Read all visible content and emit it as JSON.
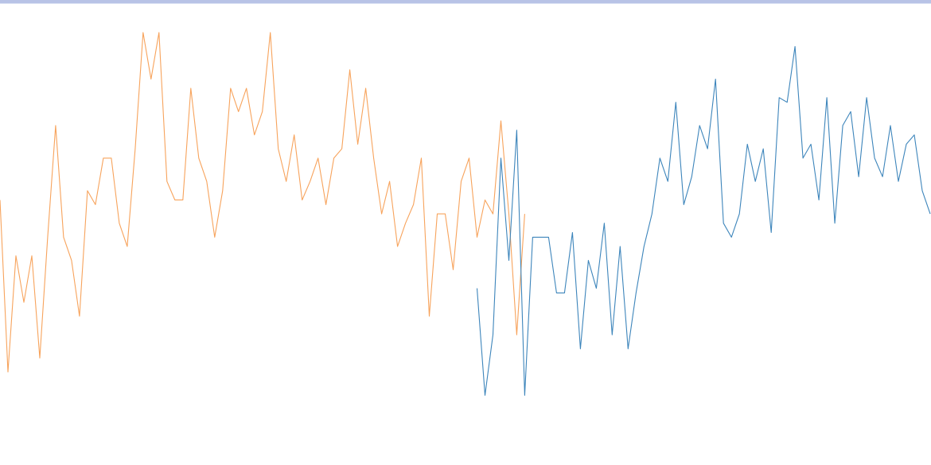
{
  "chart_data": {
    "type": "line",
    "x": [
      0,
      10,
      20,
      30,
      40,
      50,
      60,
      70,
      80,
      90,
      100,
      110,
      120,
      130,
      140,
      150,
      160,
      170,
      180,
      190,
      200,
      210,
      220,
      230,
      240,
      250,
      260,
      270,
      280,
      290,
      300,
      310,
      320,
      330,
      340,
      350,
      360,
      370,
      380,
      390,
      400,
      410,
      420,
      430,
      440,
      450,
      460,
      470,
      480,
      490,
      500,
      510,
      520,
      530,
      540,
      550,
      560,
      570,
      580,
      590,
      600,
      610,
      620,
      630,
      640,
      650,
      660,
      670,
      680,
      690,
      700,
      710,
      720,
      730,
      740,
      750,
      760,
      770,
      780,
      790,
      800,
      810,
      820,
      830,
      840,
      850,
      860,
      870,
      880,
      890,
      900,
      910,
      920,
      930,
      940,
      950,
      960,
      970,
      980,
      990,
      1000,
      1010,
      1020,
      1030,
      1040,
      1050,
      1060,
      1070,
      1080,
      1090,
      1100,
      1110,
      1120,
      1130,
      1140,
      1150,
      1160,
      1170
    ],
    "xlim": [
      0,
      1170
    ],
    "ylim": [
      0,
      100
    ],
    "series": [
      {
        "color": "#f7a35c",
        "values": [
          57,
          20,
          45,
          35,
          45,
          23,
          49,
          73,
          49,
          44,
          32,
          59,
          56,
          66,
          66,
          52,
          47,
          68,
          93,
          83,
          93,
          61,
          57,
          57,
          81,
          66,
          61,
          49,
          59,
          81,
          76,
          81,
          71,
          76,
          93,
          68,
          61,
          71,
          57,
          61,
          66,
          56,
          66,
          68,
          85,
          69,
          81,
          66,
          54,
          61,
          47,
          52,
          56,
          66,
          32,
          54,
          54,
          42,
          61,
          66,
          49,
          57,
          54,
          74,
          54,
          28,
          54,
          null,
          null,
          null,
          null,
          null,
          null,
          null,
          null,
          null,
          null,
          null,
          null,
          null,
          null,
          null,
          null,
          null,
          null,
          null,
          null,
          null,
          null,
          null,
          null,
          null,
          null,
          null,
          null,
          null,
          null,
          null,
          null,
          null,
          null,
          null,
          null,
          null,
          null,
          null,
          null,
          null,
          null,
          null,
          null,
          null,
          null,
          null,
          null,
          null,
          null,
          null
        ]
      },
      {
        "color": "#3d85bb",
        "values": [
          null,
          null,
          null,
          null,
          null,
          null,
          null,
          null,
          null,
          null,
          null,
          null,
          null,
          null,
          null,
          null,
          null,
          null,
          null,
          null,
          null,
          null,
          null,
          null,
          null,
          null,
          null,
          null,
          null,
          null,
          null,
          null,
          null,
          null,
          null,
          null,
          null,
          null,
          null,
          null,
          null,
          null,
          null,
          null,
          null,
          null,
          null,
          null,
          null,
          null,
          null,
          null,
          null,
          null,
          null,
          null,
          null,
          null,
          null,
          null,
          38,
          15,
          28,
          66,
          44,
          72,
          15,
          49,
          49,
          49,
          37,
          37,
          50,
          25,
          44,
          38,
          52,
          28,
          47,
          25,
          37,
          47,
          54,
          66,
          61,
          78,
          56,
          62,
          73,
          68,
          83,
          52,
          49,
          54,
          69,
          61,
          68,
          50,
          79,
          78,
          90,
          66,
          69,
          57,
          79,
          52,
          73,
          76,
          62,
          79,
          66,
          62,
          73,
          61,
          69,
          71,
          59,
          54
        ]
      }
    ]
  }
}
